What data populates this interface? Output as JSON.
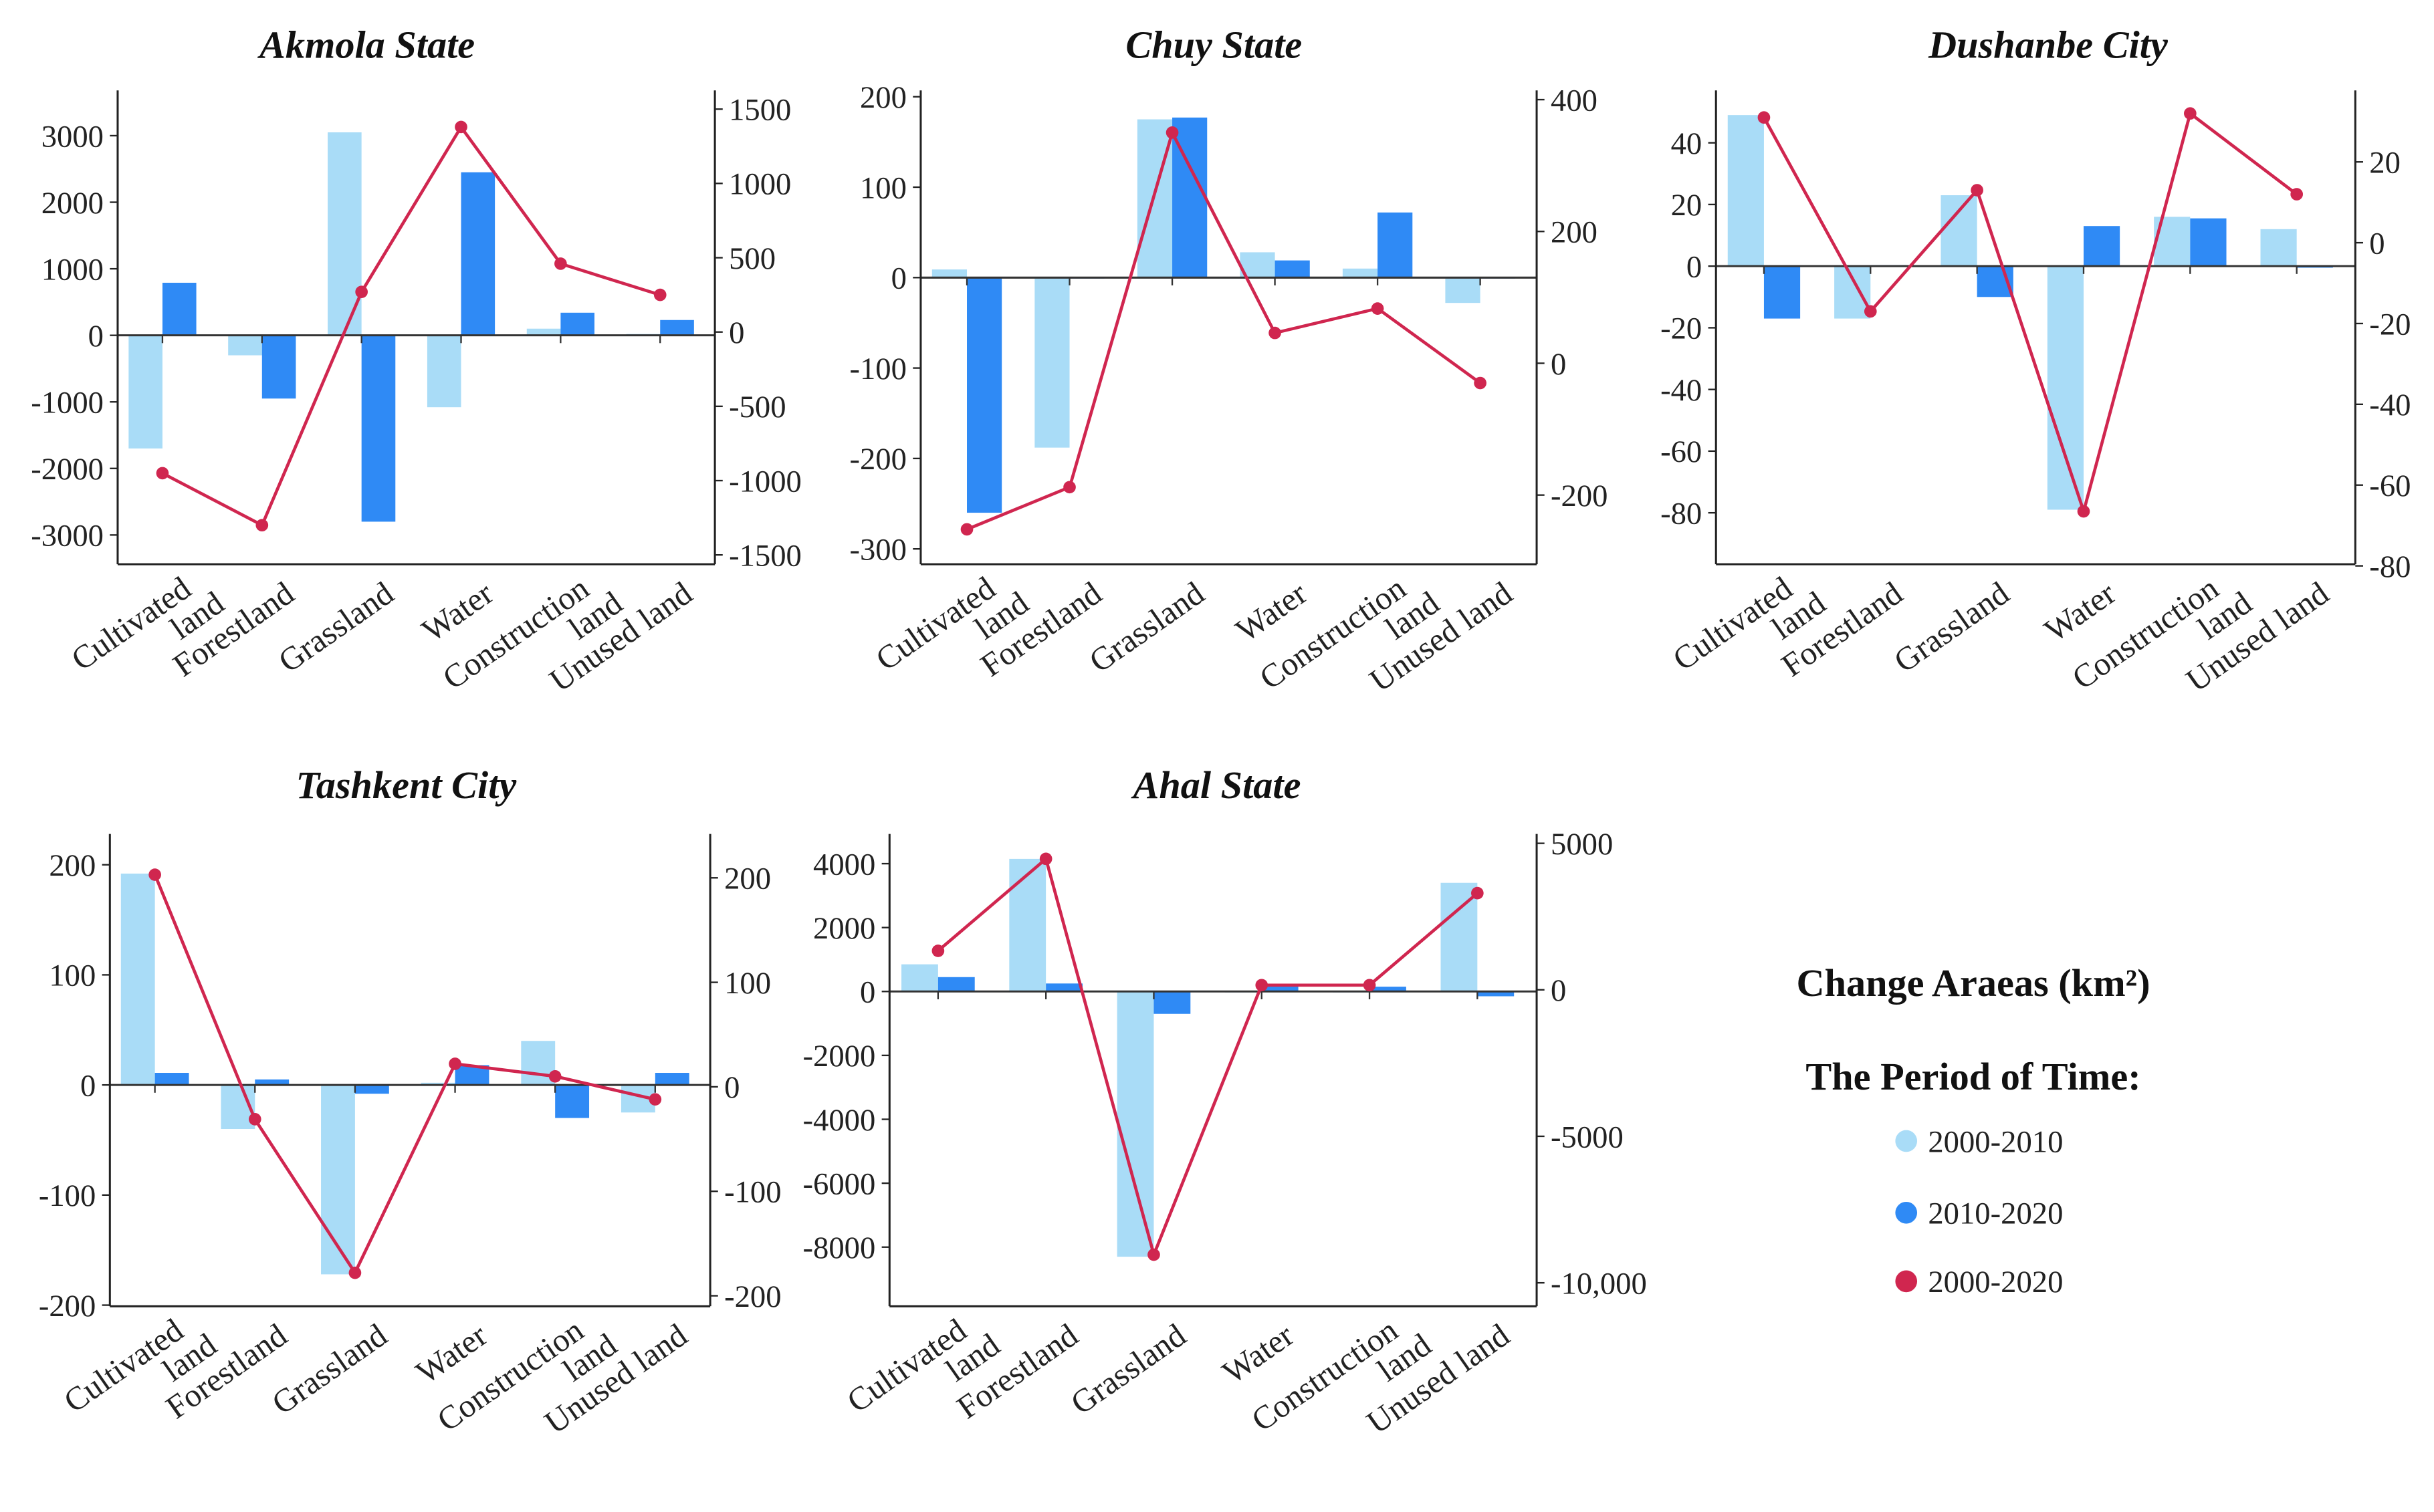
{
  "chart_data": {
    "type": "bar",
    "categories": [
      [
        "Cultivated",
        "land"
      ],
      [
        "Forestland"
      ],
      [
        "Grassland"
      ],
      [
        "Water"
      ],
      [
        "Construction",
        "land"
      ],
      [
        "Unused land"
      ]
    ],
    "colors": {
      "s2000_2010": "#a9dcf7",
      "s2010_2020": "#2f8af5",
      "s2000_2020": "#d0264f"
    },
    "legend": {
      "title": "Change Araeas (km²)",
      "subtitle": "The Period of Time:",
      "entries": [
        "2000-2010",
        "2010-2020",
        "2000-2020"
      ],
      "placement": "bottom-right"
    },
    "panels": [
      {
        "title": "Akmola State",
        "ylim_left": [
          -3440,
          3680
        ],
        "ylim_right": [
          -1563,
          1626
        ],
        "left_ticks": [
          3000,
          2000,
          1000,
          0,
          -1000,
          -2000,
          -3000
        ],
        "left_tick_labels": [
          "3000",
          "2000",
          "1000",
          "0",
          "-1000",
          "-2000",
          "-3000"
        ],
        "right_ticks": [
          1500,
          1000,
          500,
          0,
          -500,
          -1000,
          -1500
        ],
        "right_tick_labels": [
          "1500",
          "1000",
          "500",
          "0",
          "-500",
          "-1000",
          "-1500"
        ],
        "series": [
          {
            "name": "2000-2010",
            "axis": "left",
            "kind": "bar",
            "values": [
              -1700,
              -300,
              3050,
              -1080,
              100,
              20
            ]
          },
          {
            "name": "2010-2020",
            "axis": "left",
            "kind": "bar",
            "values": [
              790,
              -950,
              -2800,
              2450,
              340,
              230
            ]
          },
          {
            "name": "2000-2020",
            "axis": "right",
            "kind": "line",
            "values": [
              -950,
              -1300,
              270,
              1380,
              460,
              250
            ]
          }
        ]
      },
      {
        "title": "Chuy State",
        "ylim_left": [
          -317,
          207
        ],
        "ylim_right": [
          -305,
          414
        ],
        "left_ticks": [
          200,
          100,
          0,
          -100,
          -200,
          -300
        ],
        "left_tick_labels": [
          "200",
          "100",
          "0",
          "-100",
          "-200",
          "-300"
        ],
        "right_ticks": [
          400,
          200,
          0,
          -200
        ],
        "right_tick_labels": [
          "400",
          "200",
          "0",
          "-200"
        ],
        "series": [
          {
            "name": "2000-2010",
            "axis": "left",
            "kind": "bar",
            "values": [
              9,
              -188,
              175,
              28,
              10,
              -28
            ]
          },
          {
            "name": "2010-2020",
            "axis": "left",
            "kind": "bar",
            "values": [
              -260,
              0,
              177,
              19,
              72,
              -1
            ]
          },
          {
            "name": "2000-2020",
            "axis": "right",
            "kind": "line",
            "values": [
              -252,
              -188,
              350,
              46,
              83,
              -30
            ]
          }
        ]
      },
      {
        "title": "Dushanbe City",
        "ylim_left": [
          -96.7,
          57
        ],
        "ylim_right": [
          -79.6,
          37.7
        ],
        "left_ticks": [
          40,
          20,
          0,
          -20,
          -40,
          -60,
          -80
        ],
        "left_tick_labels": [
          "40",
          "20",
          "0",
          "-20",
          "-40",
          "-60",
          "-80"
        ],
        "right_ticks": [
          20,
          0,
          -20,
          -40,
          -60,
          -80
        ],
        "right_tick_labels": [
          "20",
          "0",
          "-20",
          "-40",
          "-60",
          "-80"
        ],
        "series": [
          {
            "name": "2000-2010",
            "axis": "left",
            "kind": "bar",
            "values": [
              49,
              -17,
              23,
              -79,
              16,
              12
            ]
          },
          {
            "name": "2010-2020",
            "axis": "left",
            "kind": "bar",
            "values": [
              -17,
              0.3,
              -10,
              13,
              15.5,
              -0.5
            ]
          },
          {
            "name": "2000-2020",
            "axis": "right",
            "kind": "line",
            "values": [
              31,
              -17,
              13,
              -66.5,
              32,
              12
            ]
          }
        ]
      },
      {
        "title": "Tashkent City",
        "ylim_left": [
          -201,
          228
        ],
        "ylim_right": [
          -210,
          242
        ],
        "left_ticks": [
          200,
          100,
          0,
          -100,
          -200
        ],
        "left_tick_labels": [
          "200",
          "100",
          "0",
          "-100",
          "-200"
        ],
        "right_ticks": [
          200,
          100,
          0,
          -100,
          -200
        ],
        "right_tick_labels": [
          "200",
          "100",
          "0",
          "-100",
          "-200"
        ],
        "series": [
          {
            "name": "2000-2010",
            "axis": "left",
            "kind": "bar",
            "values": [
              192,
              -40,
              -172,
              2,
              40,
              -25
            ]
          },
          {
            "name": "2010-2020",
            "axis": "left",
            "kind": "bar",
            "values": [
              11,
              5,
              -8,
              18,
              -30,
              11
            ]
          },
          {
            "name": "2000-2020",
            "axis": "right",
            "kind": "line",
            "values": [
              203,
              -31,
              -178,
              22,
              10,
              -12
            ]
          }
        ]
      },
      {
        "title": "Ahal State",
        "ylim_left": [
          -9850,
          4930
        ],
        "ylim_right": [
          -10800,
          5320
        ],
        "left_ticks": [
          4000,
          2000,
          0,
          -2000,
          -4000,
          -6000,
          -8000
        ],
        "left_tick_labels": [
          "4000",
          "2000",
          "0",
          "-2000",
          "-4000",
          "-6000",
          "-8000"
        ],
        "right_ticks": [
          5000,
          0,
          -5000,
          -10000
        ],
        "right_tick_labels": [
          "5000",
          "0",
          "-5000",
          "-10,000"
        ],
        "series": [
          {
            "name": "2000-2010",
            "axis": "left",
            "kind": "bar",
            "values": [
              850,
              4150,
              -8300,
              0,
              0,
              3400
            ]
          },
          {
            "name": "2010-2020",
            "axis": "left",
            "kind": "bar",
            "values": [
              450,
              250,
              -700,
              200,
              150,
              -150
            ]
          },
          {
            "name": "2000-2020",
            "axis": "right",
            "kind": "line",
            "values": [
              1330,
              4470,
              -9040,
              160,
              160,
              3300
            ]
          }
        ]
      }
    ]
  }
}
